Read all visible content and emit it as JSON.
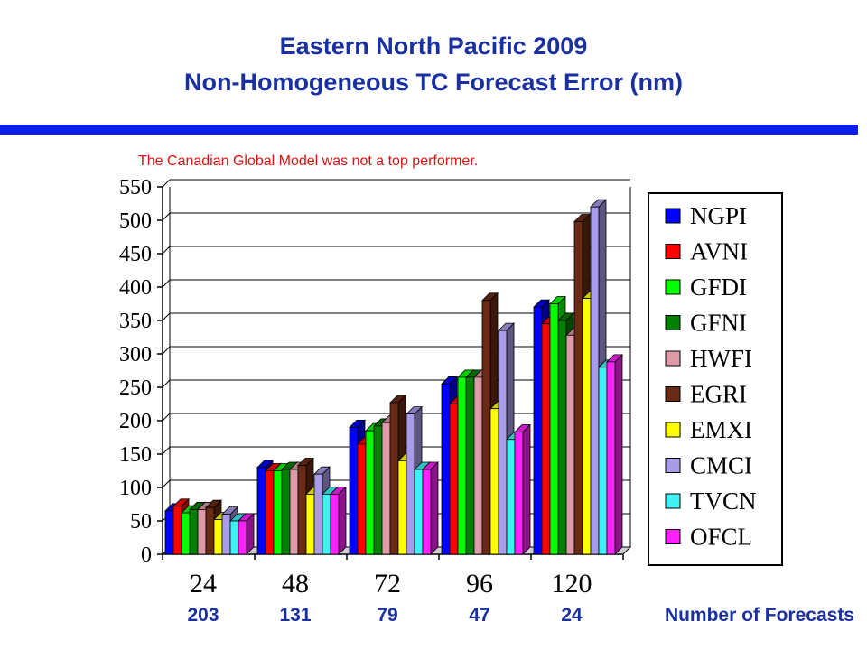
{
  "title_line1": "Eastern North Pacific 2009",
  "title_line2": "Non-Homogeneous  TC Forecast Error (nm)",
  "subtitle": "The Canadian Global Model was not a top performer.",
  "rule_color": "#0a1ee8",
  "forecast_counts": {
    "label": "Number of Forecasts",
    "values": [
      "203",
      "131",
      "79",
      "47",
      "24"
    ]
  },
  "chart_data": {
    "type": "bar",
    "title": "Eastern North Pacific 2009 Non-Homogeneous  TC Forecast Error (nm)",
    "xlabel": "",
    "ylabel": "",
    "categories": [
      "24",
      "48",
      "72",
      "96",
      "120"
    ],
    "y_ticks": [
      "0",
      "50",
      "100",
      "150",
      "200",
      "250",
      "300",
      "350",
      "400",
      "450",
      "500",
      "550"
    ],
    "ylim": [
      0,
      550
    ],
    "grid": true,
    "legend_position": "right",
    "series": [
      {
        "name": "NGPI",
        "color": "#0000ff",
        "values": [
          65,
          130,
          190,
          255,
          370
        ]
      },
      {
        "name": "AVNI",
        "color": "#ff0000",
        "values": [
          72,
          125,
          165,
          225,
          345
        ]
      },
      {
        "name": "GFDI",
        "color": "#00ff00",
        "values": [
          62,
          125,
          185,
          265,
          375
        ]
      },
      {
        "name": "GFNI",
        "color": "#008000",
        "values": [
          67,
          127,
          192,
          265,
          350
        ]
      },
      {
        "name": "HWFI",
        "color": "#de9aa6",
        "values": [
          67,
          127,
          197,
          265,
          328
        ]
      },
      {
        "name": "EGRI",
        "color": "#6b2a14",
        "values": [
          70,
          133,
          227,
          380,
          498
        ]
      },
      {
        "name": "EMXI",
        "color": "#ffff00",
        "values": [
          52,
          90,
          140,
          218,
          383
        ]
      },
      {
        "name": "CMCI",
        "color": "#a89ce8",
        "values": [
          60,
          120,
          210,
          335,
          520
        ]
      },
      {
        "name": "TVCN",
        "color": "#3ff0f5",
        "values": [
          50,
          90,
          127,
          172,
          280
        ]
      },
      {
        "name": "OFCL",
        "color": "#ff20ff",
        "values": [
          50,
          90,
          127,
          183,
          288
        ]
      }
    ]
  }
}
